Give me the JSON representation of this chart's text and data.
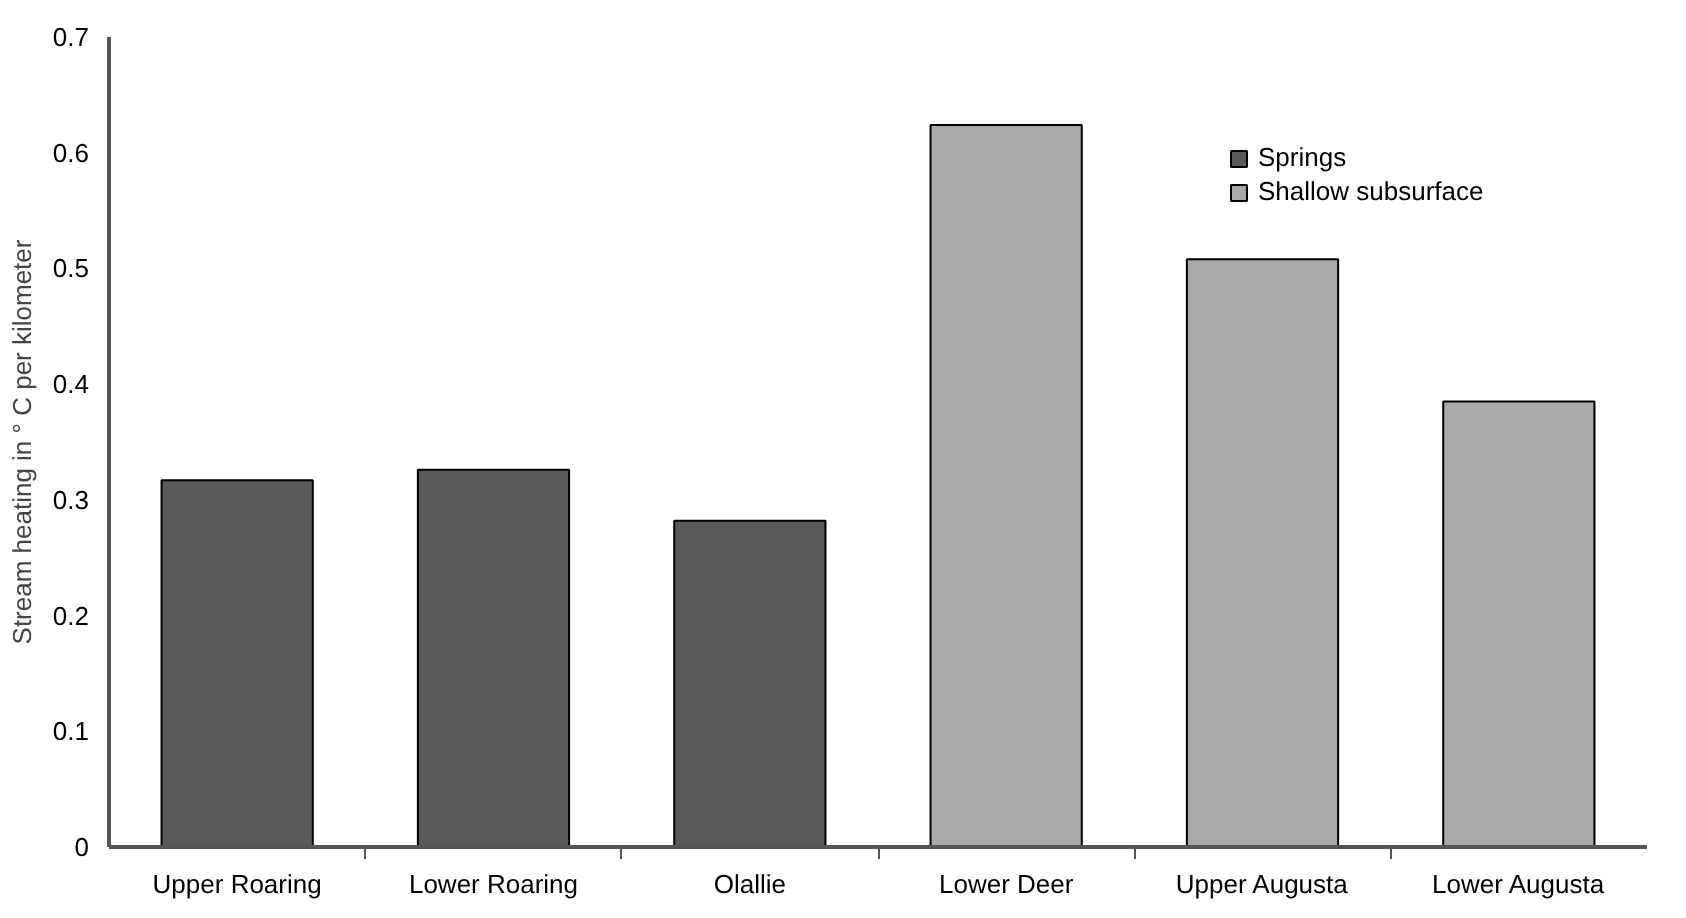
{
  "chart_data": {
    "type": "bar",
    "ylabel": "Stream heating in ° C per kilometer",
    "categories": [
      "Upper Roaring",
      "Lower Roaring",
      "Olallie",
      "Lower Deer",
      "Upper Augusta",
      "Lower Augusta"
    ],
    "series": [
      {
        "name": "Springs",
        "color": "#5a5a5a",
        "values": [
          0.317,
          0.326,
          0.282,
          null,
          null,
          null
        ]
      },
      {
        "name": "Shallow subsurface",
        "color": "#a8a8a8",
        "values": [
          null,
          null,
          null,
          0.624,
          0.508,
          0.385
        ]
      }
    ],
    "ylim": [
      0,
      0.7
    ],
    "yticks": [
      0,
      0.1,
      0.2,
      0.3,
      0.4,
      0.5,
      0.6,
      0.7
    ],
    "grid": false,
    "legend": "top right"
  }
}
